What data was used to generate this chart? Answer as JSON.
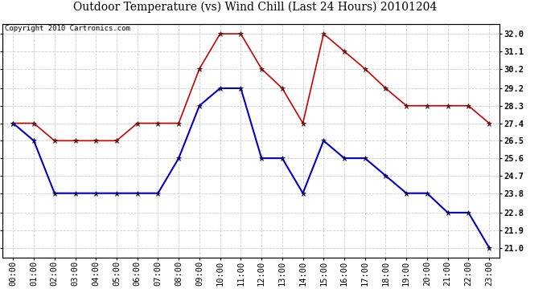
{
  "title": "Outdoor Temperature (vs) Wind Chill (Last 24 Hours) 20101204",
  "copyright": "Copyright 2010 Cartronics.com",
  "x_labels": [
    "00:00",
    "01:00",
    "02:00",
    "03:00",
    "04:00",
    "05:00",
    "06:00",
    "07:00",
    "08:00",
    "09:00",
    "10:00",
    "11:00",
    "12:00",
    "13:00",
    "14:00",
    "15:00",
    "16:00",
    "17:00",
    "18:00",
    "19:00",
    "20:00",
    "21:00",
    "22:00",
    "23:00"
  ],
  "temp_red": [
    27.4,
    27.4,
    26.5,
    26.5,
    26.5,
    26.5,
    27.4,
    27.4,
    27.4,
    30.2,
    32.0,
    32.0,
    30.2,
    29.2,
    27.4,
    32.0,
    31.1,
    30.2,
    29.2,
    28.3,
    28.3,
    28.3,
    28.3,
    27.4
  ],
  "temp_blue": [
    27.4,
    26.5,
    23.8,
    23.8,
    23.8,
    23.8,
    23.8,
    23.8,
    25.6,
    28.3,
    29.2,
    29.2,
    25.6,
    25.6,
    23.8,
    26.5,
    25.6,
    25.6,
    24.7,
    23.8,
    23.8,
    22.8,
    22.8,
    21.0
  ],
  "y_ticks": [
    21.0,
    21.9,
    22.8,
    23.8,
    24.7,
    25.6,
    26.5,
    27.4,
    28.3,
    29.2,
    30.2,
    31.1,
    32.0
  ],
  "y_min": 20.5,
  "y_max": 32.5,
  "red_color": "#cc0000",
  "blue_color": "#0000cc",
  "background_color": "#ffffff",
  "grid_color": "#cccccc",
  "title_fontsize": 10,
  "copyright_fontsize": 6.5,
  "tick_fontsize": 7.5,
  "ytick_fontsize": 7.5
}
